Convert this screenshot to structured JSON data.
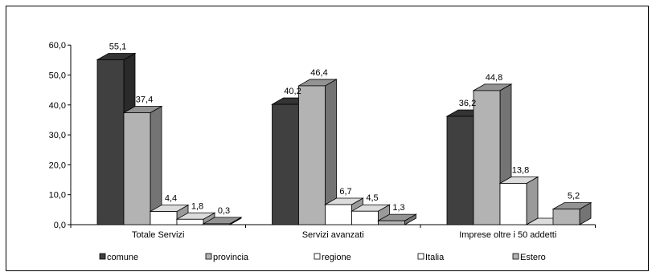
{
  "chart_data": {
    "type": "bar",
    "title": "",
    "xlabel": "",
    "ylabel": "",
    "ylim": [
      0,
      60
    ],
    "yticks": [
      "0,0",
      "10,0",
      "20,0",
      "30,0",
      "40,0",
      "50,0",
      "60,0"
    ],
    "categories": [
      "Totale Servizi",
      "Servizi avanzati",
      "Imprese oltre i 50 addetti"
    ],
    "series": [
      {
        "name": "comune",
        "values": [
          55.1,
          40.2,
          36.2
        ],
        "labels": [
          "55,1",
          "40,2",
          "36,2"
        ],
        "color": "#404040"
      },
      {
        "name": "provincia",
        "values": [
          37.4,
          46.4,
          44.8
        ],
        "labels": [
          "37,4",
          "46,4",
          "44,8"
        ],
        "color": "#b3b3b3"
      },
      {
        "name": "regione",
        "values": [
          4.4,
          6.7,
          13.8
        ],
        "labels": [
          "4,4",
          "6,7",
          "13,8"
        ],
        "color": "#ffffff"
      },
      {
        "name": "Italia",
        "values": [
          1.8,
          4.5,
          0.0
        ],
        "labels": [
          "1,8",
          "4,5",
          ""
        ],
        "color": "#ffffff"
      },
      {
        "name": "Estero",
        "values": [
          0.3,
          1.3,
          5.2
        ],
        "labels": [
          "0,3",
          "1,3",
          "5,2"
        ],
        "color": "#b3b3b3"
      }
    ],
    "grid": false,
    "legend": "bottom",
    "style": "3d"
  }
}
